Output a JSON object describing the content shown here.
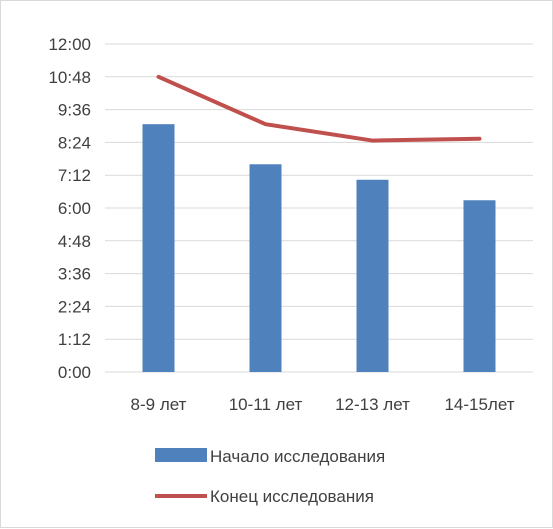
{
  "chart_data": {
    "type": "bar",
    "categories": [
      "8-9 лет",
      "10-11 лет",
      "12-13 лет",
      "14-15лет"
    ],
    "y_ticks": [
      "0:00",
      "1:12",
      "2:24",
      "3:36",
      "4:48",
      "6:00",
      "7:12",
      "8:24",
      "9:36",
      "10:48",
      "12:00"
    ],
    "ylim_minutes": [
      0,
      720
    ],
    "tick_step_minutes": 72,
    "grid": true,
    "legend_position": "bottom",
    "series": [
      {
        "name": "Начало исследования",
        "type": "bar",
        "color": "#4f81bd",
        "values_minutes": [
          544,
          456,
          422,
          377
        ]
      },
      {
        "name": "Конец исследования",
        "type": "line",
        "color": "#c0504d",
        "values_minutes": [
          648,
          544,
          508,
          512
        ]
      }
    ]
  }
}
